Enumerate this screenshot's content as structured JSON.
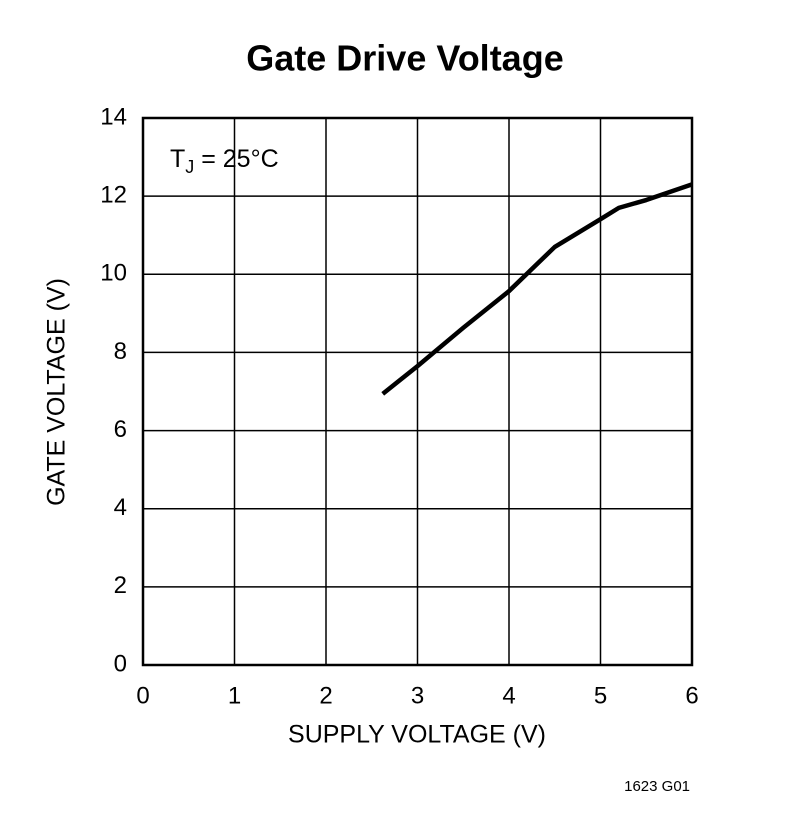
{
  "chart_data": {
    "type": "line",
    "title": "Gate Drive Voltage",
    "x_label": "SUPPLY VOLTAGE (V)",
    "y_label": "GATE VOLTAGE (V)",
    "annotation": {
      "main": "T",
      "sub": "J",
      "rest": " = 25°C"
    },
    "footnote": "1623 G01",
    "x": [
      2.62,
      3,
      3.5,
      4,
      4.5,
      5,
      5.2,
      5.5,
      6
    ],
    "values": [
      6.94,
      7.65,
      8.63,
      9.57,
      10.7,
      11.41,
      11.7,
      11.9,
      12.3
    ],
    "color": "#000000",
    "xlim": [
      0,
      6
    ],
    "xticks": [
      0,
      1,
      2,
      3,
      4,
      5,
      6
    ],
    "ylim": [
      0,
      14
    ],
    "yticks": [
      0,
      2,
      4,
      6,
      8,
      10,
      12,
      14
    ],
    "grid": true
  }
}
